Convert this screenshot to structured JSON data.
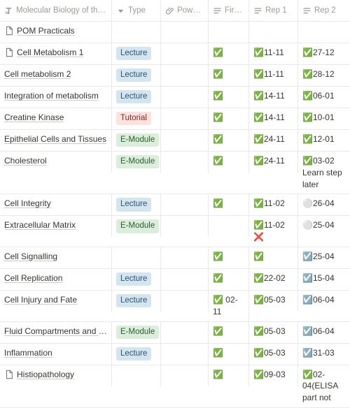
{
  "colors": {
    "Lecture": {
      "bg": "#d3e5ef",
      "fg": "#2a5275"
    },
    "Tutorial": {
      "bg": "#ffe2dd",
      "fg": "#7a2b24"
    },
    "E-Module": {
      "bg": "#dbeddb",
      "fg": "#2e5a2e"
    }
  },
  "headers": {
    "title": "Molecular Biology of the cell",
    "type": "Type",
    "ppt": "Powerpoi...",
    "firstPass": "First Pa...",
    "rep1": "Rep 1",
    "rep2": "Rep 2"
  },
  "rows": [
    {
      "icon": "page",
      "title": "POM Practicals",
      "type": "",
      "ppt": "",
      "firstPass": "",
      "rep1": "",
      "rep2": ""
    },
    {
      "icon": "page",
      "title": "Cell Metabolism 1",
      "type": "Lecture",
      "ppt": "",
      "firstPass": "✅",
      "rep1": "✅11-11",
      "rep2": "✅27-12"
    },
    {
      "icon": "",
      "title": "Cell metabolism 2",
      "type": "Lecture",
      "ppt": "",
      "firstPass": "✅",
      "rep1": "✅11-11",
      "rep2": "✅28-12"
    },
    {
      "icon": "",
      "title": "Integration of metabolism",
      "type": "Lecture",
      "ppt": "",
      "firstPass": "✅",
      "rep1": "✅14-11",
      "rep2": "✅06-01"
    },
    {
      "icon": "",
      "title": "Creatine Kinase",
      "type": "Tutorial",
      "ppt": "",
      "firstPass": "✅",
      "rep1": "✅14-11",
      "rep2": "✅10-01"
    },
    {
      "icon": "",
      "title": "Epithelial Cells and Tissues",
      "type": "E-Module",
      "ppt": "",
      "firstPass": "✅",
      "rep1": "✅24-11",
      "rep2": "✅12-01"
    },
    {
      "icon": "",
      "title": "Cholesterol",
      "type": "E-Module",
      "ppt": "",
      "firstPass": "✅",
      "rep1": "✅24-11",
      "rep2": "✅03-02 Learn step later"
    },
    {
      "icon": "",
      "title": "Cell Integrity",
      "type": "Lecture",
      "ppt": "",
      "firstPass": "✅",
      "rep1": "✅11-02",
      "rep2": "⚪26-04"
    },
    {
      "icon": "",
      "title": "Extracellular Matrix",
      "type": "E-Module",
      "ppt": "",
      "firstPass": "",
      "rep1": "✅11-02 ❌",
      "rep2": "⚪25-04"
    },
    {
      "icon": "",
      "title": "Cell Signalling",
      "type": "",
      "ppt": "",
      "firstPass": "✅",
      "rep1": "✅",
      "rep2": "☑️25-04"
    },
    {
      "icon": "",
      "title": "Cell Replication",
      "type": "Lecture",
      "ppt": "",
      "firstPass": "✅",
      "rep1": "✅22-02",
      "rep2": "☑️15-04"
    },
    {
      "icon": "",
      "title": "Cell Injury and Fate",
      "type": "Lecture",
      "ppt": "",
      "firstPass": "✅ 02-11",
      "rep1": "✅05-03",
      "rep2": "☑️06-04"
    },
    {
      "icon": "",
      "title": "Fluid Compartments and Solutes",
      "type": "E-Module",
      "ppt": "",
      "firstPass": "✅",
      "rep1": "✅05-03",
      "rep2": "☑️06-04"
    },
    {
      "icon": "",
      "title": "Inflammation",
      "type": "Lecture",
      "ppt": "",
      "firstPass": "✅",
      "rep1": "✅05-03",
      "rep2": "☑️31-03"
    },
    {
      "icon": "page",
      "title": "Histiopathology",
      "type": "",
      "ppt": "",
      "firstPass": "✅",
      "rep1": "✅09-03",
      "rep2": "✅02-04(ELISA part not"
    }
  ]
}
